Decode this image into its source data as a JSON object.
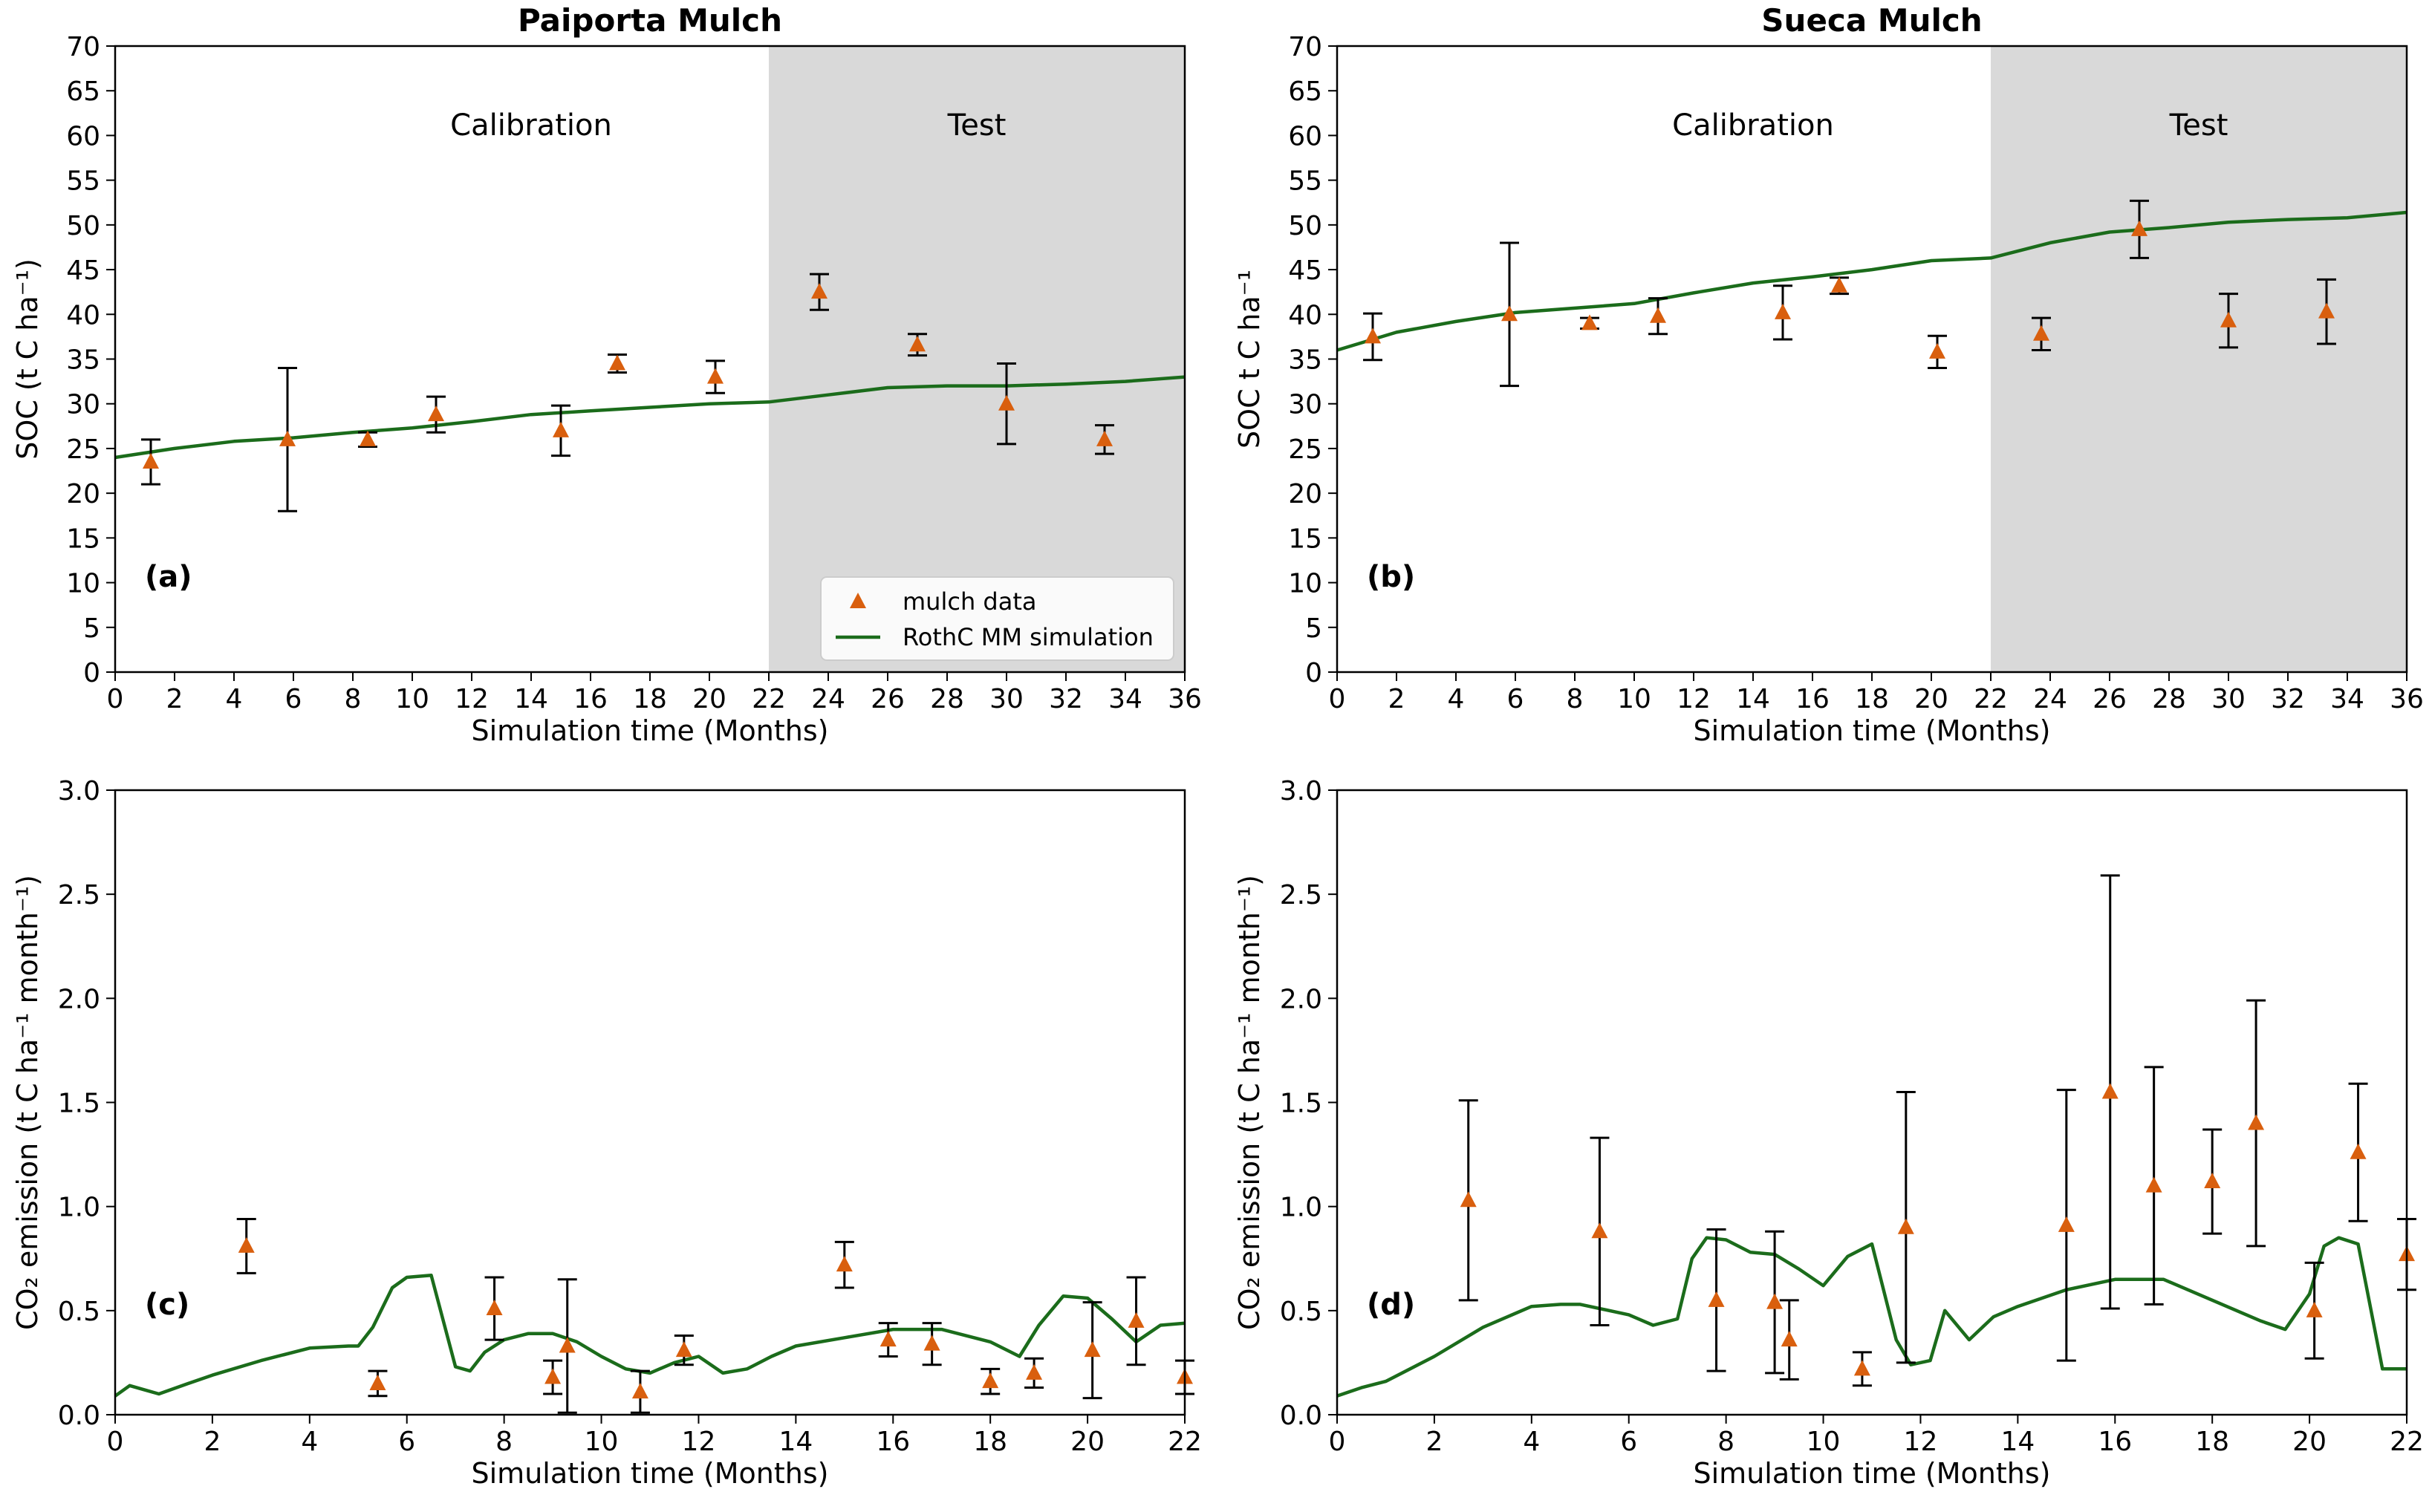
{
  "chart_data": [
    {
      "type": "line",
      "id": "a",
      "title": "Paiporta Mulch",
      "panel_label": "(a)",
      "xlabel": "Simulation time (Months)",
      "ylabel": "SOC (t C ha⁻¹)",
      "xlim": [
        0,
        36
      ],
      "ylim": [
        0,
        70
      ],
      "xticks": [
        0,
        2,
        4,
        6,
        8,
        10,
        12,
        14,
        16,
        18,
        20,
        22,
        24,
        26,
        28,
        30,
        32,
        34,
        36
      ],
      "yticks": [
        0,
        5,
        10,
        15,
        20,
        25,
        30,
        35,
        40,
        45,
        50,
        55,
        60,
        65,
        70
      ],
      "grid": false,
      "regions": [
        {
          "label": "Calibration",
          "x": [
            0,
            22
          ],
          "shaded": false
        },
        {
          "label": "Test",
          "x": [
            22,
            36
          ],
          "shaded": true
        }
      ],
      "legend": {
        "position": "bottom-right",
        "entries": [
          "mulch data",
          "RothC MM simulation"
        ]
      },
      "observed": {
        "name": "mulch data",
        "x": [
          1.2,
          5.8,
          8.5,
          10.8,
          15,
          16.9,
          20.2,
          23.7,
          27,
          30,
          33.3
        ],
        "y": [
          23.5,
          26,
          26,
          28.8,
          27,
          34.5,
          33,
          42.5,
          36.6,
          30,
          26
        ],
        "err": [
          2.5,
          8,
          0.8,
          2,
          2.8,
          1,
          1.8,
          2,
          1.2,
          4.5,
          1.6
        ]
      },
      "simulation": {
        "name": "RothC MM simulation",
        "x": [
          0,
          2,
          4,
          6,
          8,
          10,
          12,
          14,
          16,
          18,
          20,
          22,
          24,
          26,
          28,
          30,
          32,
          34,
          36
        ],
        "y": [
          24,
          25,
          25.8,
          26.2,
          26.8,
          27.3,
          28,
          28.8,
          29.2,
          29.6,
          30,
          30.2,
          31,
          31.8,
          32,
          32,
          32.2,
          32.5,
          33
        ]
      }
    },
    {
      "type": "line",
      "id": "b",
      "title": "Sueca Mulch",
      "panel_label": "(b)",
      "xlabel": "Simulation time (Months)",
      "ylabel": "SOC t C ha⁻¹",
      "xlim": [
        0,
        36
      ],
      "ylim": [
        0,
        70
      ],
      "xticks": [
        0,
        2,
        4,
        6,
        8,
        10,
        12,
        14,
        16,
        18,
        20,
        22,
        24,
        26,
        28,
        30,
        32,
        34,
        36
      ],
      "yticks": [
        0,
        5,
        10,
        15,
        20,
        25,
        30,
        35,
        40,
        45,
        50,
        55,
        60,
        65,
        70
      ],
      "grid": false,
      "regions": [
        {
          "label": "Calibration",
          "x": [
            0,
            22
          ],
          "shaded": false
        },
        {
          "label": "Test",
          "x": [
            22,
            36
          ],
          "shaded": true
        }
      ],
      "observed": {
        "name": "mulch data",
        "x": [
          1.2,
          5.8,
          8.5,
          10.8,
          15,
          16.9,
          20.2,
          23.7,
          27,
          30,
          33.3
        ],
        "y": [
          37.5,
          40,
          39,
          39.8,
          40.2,
          43.2,
          35.8,
          37.8,
          49.5,
          39.3,
          40.3
        ],
        "err": [
          2.6,
          8,
          0.6,
          2,
          3,
          0.9,
          1.8,
          1.8,
          3.2,
          3,
          3.6
        ]
      },
      "simulation": {
        "name": "RothC MM simulation",
        "x": [
          0,
          2,
          4,
          6,
          8,
          10,
          12,
          14,
          16,
          18,
          20,
          22,
          24,
          26,
          28,
          30,
          32,
          34,
          36
        ],
        "y": [
          36,
          38,
          39.2,
          40.2,
          40.7,
          41.2,
          42.4,
          43.5,
          44.2,
          45,
          46,
          46.3,
          48,
          49.2,
          49.7,
          50.3,
          50.6,
          50.8,
          51.4
        ]
      }
    },
    {
      "type": "line",
      "id": "c",
      "panel_label": "(c)",
      "xlabel": "Simulation time (Months)",
      "ylabel": "CO₂ emission (t C ha⁻¹ month⁻¹)",
      "xlim": [
        0,
        22
      ],
      "ylim": [
        0,
        3
      ],
      "xticks": [
        0,
        2,
        4,
        6,
        8,
        10,
        12,
        14,
        16,
        18,
        20,
        22
      ],
      "yticks": [
        0.0,
        0.5,
        1.0,
        1.5,
        2.0,
        2.5,
        3.0
      ],
      "grid": false,
      "observed": {
        "name": "mulch data",
        "x": [
          2.7,
          5.4,
          7.8,
          9,
          9.3,
          10.8,
          11.7,
          15,
          15.9,
          16.8,
          18,
          18.9,
          20.1,
          21,
          22
        ],
        "y": [
          0.81,
          0.15,
          0.51,
          0.18,
          0.33,
          0.11,
          0.31,
          0.72,
          0.36,
          0.34,
          0.16,
          0.2,
          0.31,
          0.45,
          0.18
        ],
        "err": [
          0.13,
          0.06,
          0.15,
          0.08,
          0.32,
          0.1,
          0.07,
          0.11,
          0.08,
          0.1,
          0.06,
          0.07,
          0.23,
          0.21,
          0.08
        ]
      },
      "simulation": {
        "name": "RothC MM simulation",
        "x": [
          0,
          0.3,
          0.6,
          0.9,
          1.5,
          2,
          3,
          4,
          4.8,
          5,
          5.3,
          5.7,
          6,
          6.5,
          7,
          7.3,
          7.6,
          8,
          8.5,
          9,
          9.5,
          10,
          10.5,
          11,
          11.5,
          12,
          12.5,
          13,
          13.5,
          14,
          15,
          16,
          17,
          18,
          18.6,
          19,
          19.5,
          20,
          20.5,
          21,
          21.5,
          22
        ],
        "y": [
          0.09,
          0.14,
          0.12,
          0.1,
          0.15,
          0.19,
          0.26,
          0.32,
          0.33,
          0.33,
          0.42,
          0.61,
          0.66,
          0.67,
          0.23,
          0.21,
          0.3,
          0.36,
          0.39,
          0.39,
          0.35,
          0.28,
          0.22,
          0.2,
          0.25,
          0.28,
          0.2,
          0.22,
          0.28,
          0.33,
          0.37,
          0.41,
          0.41,
          0.35,
          0.28,
          0.43,
          0.57,
          0.56,
          0.46,
          0.35,
          0.43,
          0.44
        ]
      }
    },
    {
      "type": "line",
      "id": "d",
      "panel_label": "(d)",
      "xlabel": "Simulation time (Months)",
      "ylabel": "CO₂ emission (t C ha⁻¹ month⁻¹)",
      "xlim": [
        0,
        22
      ],
      "ylim": [
        0,
        3
      ],
      "xticks": [
        0,
        2,
        4,
        6,
        8,
        10,
        12,
        14,
        16,
        18,
        20,
        22
      ],
      "yticks": [
        0.0,
        0.5,
        1.0,
        1.5,
        2.0,
        2.5,
        3.0
      ],
      "grid": false,
      "observed": {
        "name": "mulch data",
        "x": [
          2.7,
          5.4,
          7.8,
          9,
          9.3,
          10.8,
          11.7,
          15,
          15.9,
          16.8,
          18,
          18.9,
          20.1,
          21,
          22
        ],
        "y": [
          1.03,
          0.88,
          0.55,
          0.54,
          0.36,
          0.22,
          0.9,
          0.91,
          1.55,
          1.1,
          1.12,
          1.4,
          0.5,
          1.26,
          0.77
        ],
        "err": [
          0.48,
          0.45,
          0.34,
          0.34,
          0.19,
          0.08,
          0.65,
          0.65,
          1.04,
          0.57,
          0.25,
          0.59,
          0.23,
          0.33,
          0.17
        ]
      },
      "simulation": {
        "name": "RothC MM simulation",
        "x": [
          0,
          0.5,
          1,
          2,
          3,
          4,
          4.6,
          5,
          6,
          6.5,
          7,
          7.3,
          7.6,
          8,
          8.5,
          9,
          9.5,
          10,
          10.5,
          11,
          11.5,
          11.8,
          12.2,
          12.5,
          13,
          13.5,
          14,
          15,
          16,
          17,
          18,
          19,
          19.5,
          20,
          20.3,
          20.6,
          21,
          21.5,
          22
        ],
        "y": [
          0.09,
          0.13,
          0.16,
          0.28,
          0.42,
          0.52,
          0.53,
          0.53,
          0.48,
          0.43,
          0.46,
          0.75,
          0.85,
          0.84,
          0.78,
          0.77,
          0.7,
          0.62,
          0.76,
          0.82,
          0.36,
          0.24,
          0.26,
          0.5,
          0.36,
          0.47,
          0.52,
          0.6,
          0.65,
          0.65,
          0.55,
          0.45,
          0.41,
          0.58,
          0.81,
          0.85,
          0.82,
          0.22,
          0.22
        ]
      }
    }
  ],
  "colors": {
    "marker": "#d95f0e",
    "line": "#1b6c1b",
    "shade": "#d9d9d9",
    "errorbar": "#000000"
  }
}
